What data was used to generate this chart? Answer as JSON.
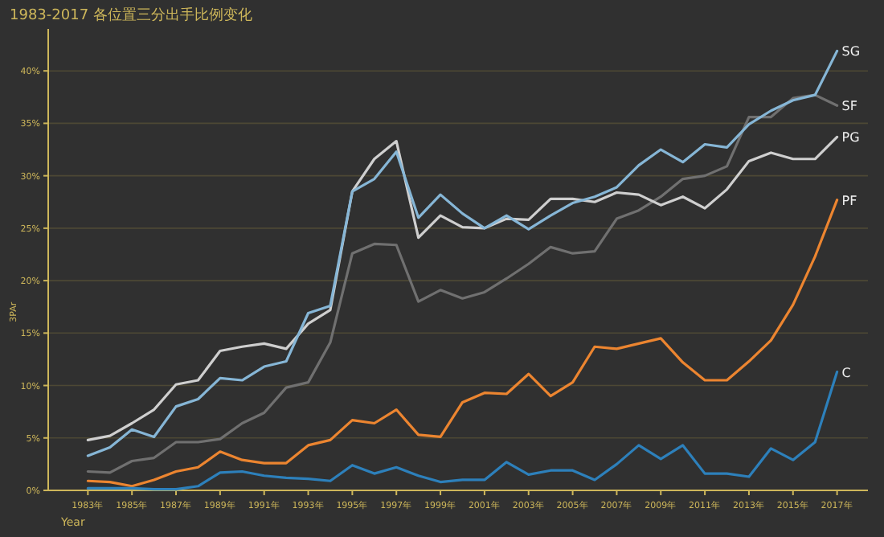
{
  "chart_data": {
    "type": "line",
    "title": "1983-2017 各位置三分出手比例变化",
    "xlabel": "Year",
    "ylabel": "3PAr",
    "x": [
      1983,
      1984,
      1985,
      1986,
      1987,
      1988,
      1989,
      1990,
      1991,
      1992,
      1993,
      1994,
      1995,
      1996,
      1997,
      1998,
      1999,
      2000,
      2001,
      2002,
      2003,
      2004,
      2005,
      2006,
      2007,
      2008,
      2009,
      2010,
      2011,
      2012,
      2013,
      2014,
      2015,
      2016,
      2017
    ],
    "xlim": [
      1981.2,
      2018.4
    ],
    "xticks": [
      {
        "value": 1983,
        "label": "1983年"
      },
      {
        "value": 1985,
        "label": "1985年"
      },
      {
        "value": 1987,
        "label": "1987年"
      },
      {
        "value": 1989,
        "label": "1989年"
      },
      {
        "value": 1991,
        "label": "1991年"
      },
      {
        "value": 1993,
        "label": "1993年"
      },
      {
        "value": 1995,
        "label": "1995年"
      },
      {
        "value": 1997,
        "label": "1997年"
      },
      {
        "value": 1999,
        "label": "1999年"
      },
      {
        "value": 2001,
        "label": "2001年"
      },
      {
        "value": 2003,
        "label": "2003年"
      },
      {
        "value": 2005,
        "label": "2005年"
      },
      {
        "value": 2007,
        "label": "2007年"
      },
      {
        "value": 2009,
        "label": "2009年"
      },
      {
        "value": 2011,
        "label": "2011年"
      },
      {
        "value": 2013,
        "label": "2013年"
      },
      {
        "value": 2015,
        "label": "2015年"
      },
      {
        "value": 2017,
        "label": "2017年"
      }
    ],
    "ylim": [
      0,
      44
    ],
    "yticks": [
      {
        "value": 0,
        "label": "0%"
      },
      {
        "value": 5,
        "label": "5%"
      },
      {
        "value": 10,
        "label": "10%"
      },
      {
        "value": 15,
        "label": "15%"
      },
      {
        "value": 20,
        "label": "20%"
      },
      {
        "value": 25,
        "label": "25%"
      },
      {
        "value": 30,
        "label": "30%"
      },
      {
        "value": 35,
        "label": "35%"
      },
      {
        "value": 40,
        "label": "40%"
      }
    ],
    "grid": "y",
    "legend": false,
    "marker": "none",
    "line_style": "solid",
    "series": [
      {
        "name": "SF",
        "color": "#707070",
        "values": [
          1.8,
          1.7,
          2.8,
          3.1,
          4.6,
          4.6,
          4.9,
          6.4,
          7.4,
          9.8,
          10.3,
          14.1,
          22.6,
          23.5,
          23.4,
          18.0,
          19.1,
          18.3,
          18.9,
          20.2,
          21.6,
          23.2,
          22.6,
          22.8,
          25.9,
          26.7,
          28.0,
          29.7,
          30.0,
          30.9,
          35.6,
          35.6,
          37.4,
          37.7,
          36.7
        ]
      },
      {
        "name": "PG",
        "color": "#cfcfcf",
        "values": [
          4.8,
          5.2,
          6.4,
          7.7,
          10.1,
          10.5,
          13.3,
          13.7,
          14.0,
          13.5,
          15.9,
          17.2,
          28.5,
          31.6,
          33.3,
          24.1,
          26.2,
          25.1,
          25.0,
          25.9,
          25.8,
          27.8,
          27.8,
          27.5,
          28.4,
          28.2,
          27.2,
          28.0,
          26.9,
          28.7,
          31.4,
          32.2,
          31.6,
          31.6,
          33.7
        ]
      },
      {
        "name": "SG",
        "color": "#86b6d6",
        "values": [
          3.3,
          4.1,
          5.8,
          5.1,
          8.0,
          8.7,
          10.7,
          10.5,
          11.8,
          12.3,
          16.9,
          17.6,
          28.5,
          29.7,
          32.3,
          26.0,
          28.2,
          26.4,
          25.0,
          26.2,
          24.9,
          26.2,
          27.4,
          28.0,
          28.9,
          31.0,
          32.5,
          31.3,
          33.0,
          32.7,
          34.9,
          36.2,
          37.2,
          37.7,
          41.9
        ]
      },
      {
        "name": "PF",
        "color": "#ec8530",
        "values": [
          0.9,
          0.8,
          0.4,
          1.0,
          1.8,
          2.2,
          3.7,
          2.9,
          2.6,
          2.6,
          4.3,
          4.8,
          6.7,
          6.4,
          7.7,
          5.3,
          5.1,
          8.4,
          9.3,
          9.2,
          11.1,
          9.0,
          10.3,
          13.7,
          13.5,
          14.0,
          14.5,
          12.2,
          10.5,
          10.5,
          12.3,
          14.3,
          17.7,
          22.3,
          27.7
        ]
      },
      {
        "name": "C",
        "color": "#2d80bb",
        "values": [
          0.2,
          0.2,
          0.2,
          0.1,
          0.1,
          0.4,
          1.7,
          1.8,
          1.4,
          1.2,
          1.1,
          0.9,
          2.4,
          1.6,
          2.2,
          1.4,
          0.8,
          1.0,
          1.0,
          2.7,
          1.5,
          1.9,
          1.9,
          1.0,
          2.5,
          4.3,
          3.0,
          4.3,
          1.6,
          1.6,
          1.3,
          4.0,
          2.9,
          4.6,
          11.3
        ]
      }
    ]
  }
}
